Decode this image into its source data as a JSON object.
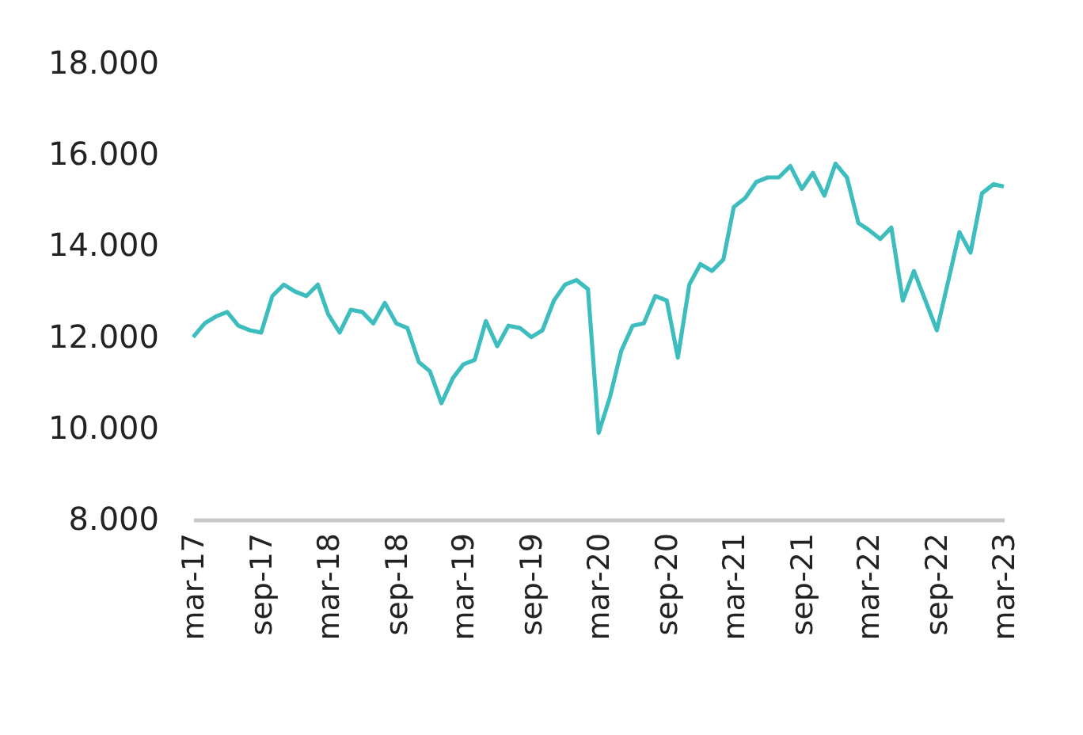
{
  "chart_data": {
    "type": "line",
    "x": [
      "2017-03",
      "2017-04",
      "2017-05",
      "2017-06",
      "2017-07",
      "2017-08",
      "2017-09",
      "2017-10",
      "2017-11",
      "2017-12",
      "2018-01",
      "2018-02",
      "2018-03",
      "2018-04",
      "2018-05",
      "2018-06",
      "2018-07",
      "2018-08",
      "2018-09",
      "2018-10",
      "2018-11",
      "2018-12",
      "2019-01",
      "2019-02",
      "2019-03",
      "2019-04",
      "2019-05",
      "2019-06",
      "2019-07",
      "2019-08",
      "2019-09",
      "2019-10",
      "2019-11",
      "2019-12",
      "2020-01",
      "2020-02",
      "2020-03",
      "2020-04",
      "2020-05",
      "2020-06",
      "2020-07",
      "2020-08",
      "2020-09",
      "2020-10",
      "2020-11",
      "2020-12",
      "2021-01",
      "2021-02",
      "2021-03",
      "2021-04",
      "2021-05",
      "2021-06",
      "2021-07",
      "2021-08",
      "2021-09",
      "2021-10",
      "2021-11",
      "2021-12",
      "2022-01",
      "2022-02",
      "2022-03",
      "2022-04",
      "2022-05",
      "2022-06",
      "2022-07",
      "2022-08",
      "2022-09",
      "2022-10",
      "2022-11",
      "2022-12",
      "2023-01",
      "2023-02",
      "2023-03"
    ],
    "series": [
      {
        "color": "#3dbdbd",
        "values": [
          12000,
          12300,
          12450,
          12550,
          12250,
          12150,
          12100,
          12900,
          13150,
          13000,
          12900,
          13150,
          12500,
          12100,
          12600,
          12550,
          12300,
          12750,
          12300,
          12200,
          11450,
          11250,
          10550,
          11100,
          11400,
          11500,
          12350,
          11800,
          12250,
          12200,
          12000,
          12150,
          12800,
          13150,
          13250,
          13050,
          9900,
          10700,
          11700,
          12250,
          12300,
          12900,
          12800,
          11550,
          13150,
          13600,
          13450,
          13700,
          14850,
          15050,
          15400,
          15500,
          15500,
          15750,
          15250,
          15600,
          15100,
          15800,
          15500,
          14500,
          14350,
          14150,
          14400,
          12800,
          13450,
          12800,
          12150,
          13200,
          14300,
          13850,
          15150,
          15350,
          15300
        ]
      }
    ],
    "xlim": [
      "2017-03",
      "2023-03"
    ],
    "xticks": [
      {
        "value": "2017-03",
        "label": "mar-17"
      },
      {
        "value": "2017-09",
        "label": "sep-17"
      },
      {
        "value": "2018-03",
        "label": "mar-18"
      },
      {
        "value": "2018-09",
        "label": "sep-18"
      },
      {
        "value": "2019-03",
        "label": "mar-19"
      },
      {
        "value": "2019-09",
        "label": "sep-19"
      },
      {
        "value": "2020-03",
        "label": "mar-20"
      },
      {
        "value": "2020-09",
        "label": "sep-20"
      },
      {
        "value": "2021-03",
        "label": "mar-21"
      },
      {
        "value": "2021-09",
        "label": "sep-21"
      },
      {
        "value": "2022-03",
        "label": "mar-22"
      },
      {
        "value": "2022-09",
        "label": "sep-22"
      },
      {
        "value": "2023-03",
        "label": "mar-23"
      }
    ],
    "ylim": [
      8000,
      18000
    ],
    "yticks": [
      {
        "value": 8000,
        "label": "8.000"
      },
      {
        "value": 10000,
        "label": "10.000"
      },
      {
        "value": 12000,
        "label": "12.000"
      },
      {
        "value": 14000,
        "label": "14.000"
      },
      {
        "value": 16000,
        "label": "16.000"
      },
      {
        "value": 18000,
        "label": "18.000"
      }
    ],
    "grid": false,
    "marker": "none",
    "line_style": "solid"
  }
}
